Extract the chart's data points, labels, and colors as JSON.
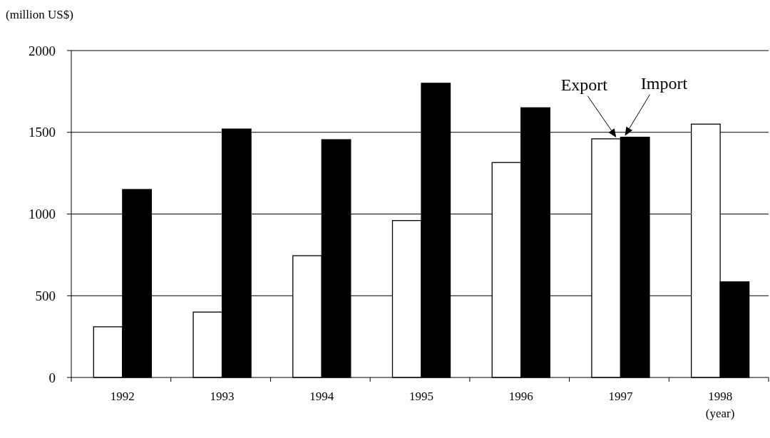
{
  "chart_data": {
    "type": "bar",
    "ylabel": "(million US$)",
    "xlabel": "(year)",
    "categories": [
      "1992",
      "1993",
      "1994",
      "1995",
      "1996",
      "1997",
      "1998"
    ],
    "series": [
      {
        "color": "#ffffff",
        "values": [
          310,
          400,
          745,
          960,
          1315,
          1460,
          1550
        ]
      },
      {
        "color": "#000000",
        "values": [
          1150,
          1520,
          1455,
          1800,
          1650,
          1470,
          585
        ]
      }
    ],
    "ylim": [
      0,
      2000
    ],
    "yticks": [
      0,
      500,
      1000,
      1500,
      2000
    ],
    "grid": "y",
    "annotations": [
      {
        "text": "Export",
        "x": "1997",
        "y": 1460
      },
      {
        "text": "Import",
        "x": "1997",
        "y": 1470
      }
    ]
  }
}
